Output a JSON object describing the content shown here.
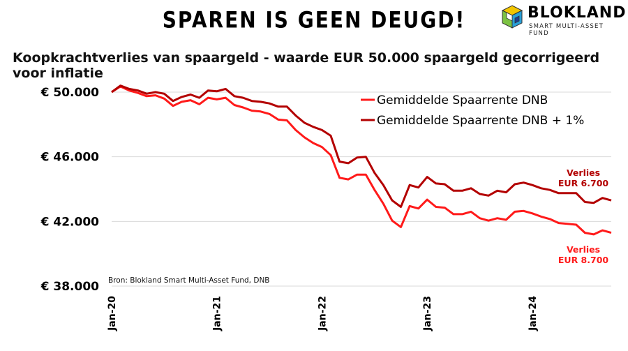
{
  "header": {
    "title": "SPAREN IS GEEN DEUGD!",
    "subtitle": "Koopkrachtverlies van spaargeld - waarde EUR 50.000 spaargeld gecorrigeerd voor inflatie"
  },
  "logo": {
    "name": "BLOKLAND",
    "tagline": "SMART MULTI-ASSET FUND",
    "icon": "cube-logo-icon"
  },
  "source": "Bron: Blokland Smart Multi-Asset Fund, DNB",
  "colors": {
    "series1": "#ff1a1a",
    "series2": "#b30000",
    "grid": "#d9d9d9"
  },
  "chart_data": {
    "type": "line",
    "ylim": [
      38000,
      50000
    ],
    "y_ticks": [
      "€ 50.000",
      "€ 46.000",
      "€ 42.000",
      "€ 38.000"
    ],
    "y_tick_values": [
      50000,
      46000,
      42000,
      38000
    ],
    "x_ticks": [
      "Jan-20",
      "Jan-21",
      "Jan-22",
      "Jan-23",
      "Jan-24"
    ],
    "x_tick_index": [
      0,
      12,
      24,
      36,
      48
    ],
    "grid": "horizontal",
    "legend_position": "top-right",
    "series": [
      {
        "name": "Gemiddelde Spaarrente DNB",
        "values": [
          50000,
          50350,
          50100,
          49950,
          49750,
          49800,
          49600,
          49150,
          49400,
          49500,
          49250,
          49650,
          49550,
          49650,
          49200,
          49050,
          48850,
          48800,
          48650,
          48300,
          48250,
          47650,
          47200,
          46850,
          46600,
          46100,
          44700,
          44600,
          44900,
          44900,
          43950,
          43100,
          42050,
          41650,
          42950,
          42800,
          43350,
          42900,
          42850,
          42450,
          42450,
          42600,
          42200,
          42050,
          42200,
          42100,
          42600,
          42650,
          42500,
          42300,
          42150,
          41900,
          41850,
          41800,
          41300,
          41200,
          41450,
          41300
        ]
      },
      {
        "name": "Gemiddelde Spaarrente DNB + 1%",
        "values": [
          50000,
          50400,
          50200,
          50100,
          49900,
          50000,
          49900,
          49450,
          49700,
          49850,
          49650,
          50100,
          50050,
          50200,
          49750,
          49650,
          49450,
          49400,
          49300,
          49100,
          49100,
          48550,
          48100,
          47850,
          47650,
          47300,
          45700,
          45600,
          45950,
          46000,
          45000,
          44250,
          43300,
          42900,
          44250,
          44100,
          44750,
          44350,
          44300,
          43900,
          43900,
          44050,
          43700,
          43600,
          43900,
          43800,
          44300,
          44400,
          44250,
          44050,
          43950,
          43750,
          43750,
          43750,
          43200,
          43150,
          43450,
          43300
        ]
      }
    ],
    "annotations": [
      {
        "text": [
          "Verlies",
          "EUR 6.700"
        ],
        "series": 1
      },
      {
        "text": [
          "Verlies",
          "EUR 8.700"
        ],
        "series": 0
      }
    ]
  }
}
